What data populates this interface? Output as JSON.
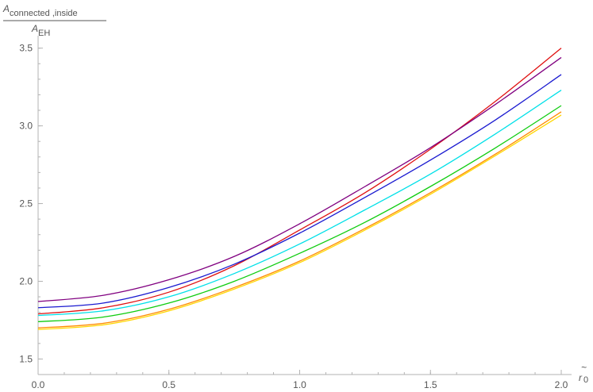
{
  "chart_data": {
    "type": "line",
    "title": "",
    "ylabel": {
      "numerator_main": "A",
      "numerator_sub": "connected ,inside",
      "denominator_main": "A",
      "denominator_sub": "EH"
    },
    "xlabel": {
      "accent": "~",
      "main": "r",
      "sub": "0"
    },
    "xlim": [
      0,
      2.0
    ],
    "ylim": [
      1.4,
      3.58
    ],
    "x_ticks": [
      0.0,
      0.5,
      1.0,
      1.5,
      2.0
    ],
    "x_tick_labels": [
      "0.0",
      "0.5",
      "1.0",
      "1.5",
      "2.0"
    ],
    "y_ticks": [
      1.5,
      2.0,
      2.5,
      3.0,
      3.5
    ],
    "y_tick_labels": [
      "1.5",
      "2.0",
      "2.5",
      "3.0",
      "3.5"
    ],
    "grid": false,
    "legend": "none",
    "x": [
      0.0,
      0.25,
      0.5,
      0.75,
      1.0,
      1.25,
      1.5,
      1.75,
      2.0
    ],
    "series": [
      {
        "color": "#e01010",
        "values": [
          1.79,
          1.83,
          1.93,
          2.1,
          2.33,
          2.57,
          2.85,
          3.16,
          3.5
        ]
      },
      {
        "color": "#800080",
        "values": [
          1.87,
          1.91,
          2.01,
          2.16,
          2.37,
          2.61,
          2.86,
          3.14,
          3.44
        ]
      },
      {
        "color": "#1a1ad0",
        "values": [
          1.83,
          1.86,
          1.96,
          2.11,
          2.31,
          2.54,
          2.78,
          3.04,
          3.33
        ]
      },
      {
        "color": "#00e0e8",
        "values": [
          1.78,
          1.81,
          1.9,
          2.05,
          2.24,
          2.46,
          2.69,
          2.95,
          3.23
        ]
      },
      {
        "color": "#10cc10",
        "values": [
          1.74,
          1.77,
          1.86,
          2.0,
          2.18,
          2.38,
          2.61,
          2.86,
          3.13
        ]
      },
      {
        "color": "#ff8c00",
        "values": [
          1.7,
          1.73,
          1.82,
          1.96,
          2.13,
          2.34,
          2.57,
          2.82,
          3.09
        ]
      },
      {
        "color": "#ffd700",
        "values": [
          1.69,
          1.72,
          1.81,
          1.95,
          2.12,
          2.33,
          2.56,
          2.81,
          3.07
        ]
      }
    ]
  }
}
